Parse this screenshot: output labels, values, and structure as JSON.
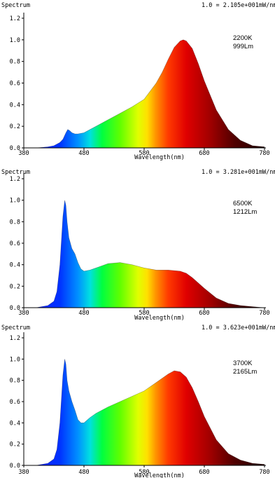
{
  "chart_data": [
    {
      "type": "area",
      "title": "Spectrum",
      "scale_note": "1.0 = 2.105e+001mW/nm",
      "annotation": [
        "2200K",
        "999Lm"
      ],
      "xlabel": "Wavelength(nm)",
      "xlim": [
        380,
        780
      ],
      "ylim": [
        0,
        1.2
      ],
      "xticks": [
        "380",
        "480",
        "580",
        "680",
        "780"
      ],
      "yticks": [
        "0.0",
        "0.2",
        "0.4",
        "0.6",
        "0.8",
        "1.0",
        "1.2"
      ],
      "grid": false,
      "x": [
        380,
        400,
        420,
        430,
        440,
        445,
        450,
        453,
        456,
        460,
        465,
        470,
        480,
        490,
        500,
        520,
        540,
        560,
        580,
        600,
        610,
        620,
        630,
        640,
        645,
        650,
        660,
        670,
        680,
        700,
        720,
        740,
        760,
        780
      ],
      "y": [
        0.0,
        0.0,
        0.01,
        0.02,
        0.05,
        0.08,
        0.14,
        0.17,
        0.16,
        0.14,
        0.13,
        0.13,
        0.14,
        0.17,
        0.2,
        0.26,
        0.32,
        0.38,
        0.45,
        0.6,
        0.7,
        0.82,
        0.93,
        0.99,
        1.0,
        0.99,
        0.92,
        0.78,
        0.62,
        0.35,
        0.17,
        0.07,
        0.02,
        0.01
      ]
    },
    {
      "type": "area",
      "title": "Spectrum",
      "scale_note": "1.0 = 3.281e+001mW/nm",
      "annotation": [
        "6500K",
        "1212Lm"
      ],
      "xlabel": "Wavelength(nm)",
      "xlim": [
        380,
        780
      ],
      "ylim": [
        0,
        1.2
      ],
      "xticks": [
        "380",
        "480",
        "580",
        "680",
        "780"
      ],
      "yticks": [
        "0.0",
        "0.2",
        "0.4",
        "0.6",
        "0.8",
        "1.0",
        "1.2"
      ],
      "grid": false,
      "x": [
        380,
        400,
        420,
        430,
        435,
        440,
        445,
        448,
        450,
        452,
        455,
        460,
        465,
        470,
        475,
        480,
        490,
        500,
        520,
        540,
        560,
        580,
        600,
        620,
        640,
        650,
        660,
        680,
        700,
        720,
        740,
        760,
        780
      ],
      "y": [
        0.0,
        0.0,
        0.02,
        0.06,
        0.15,
        0.4,
        0.85,
        1.0,
        0.95,
        0.8,
        0.65,
        0.55,
        0.5,
        0.42,
        0.36,
        0.34,
        0.35,
        0.37,
        0.41,
        0.42,
        0.4,
        0.37,
        0.35,
        0.35,
        0.34,
        0.32,
        0.28,
        0.18,
        0.09,
        0.04,
        0.02,
        0.01,
        0.0
      ]
    },
    {
      "type": "area",
      "title": "Spectrum",
      "scale_note": "1.0 = 3.623e+001mW/nm",
      "annotation": [
        "3700K",
        "2165Lm"
      ],
      "xlabel": "Wavelength(nm)",
      "xlim": [
        380,
        780
      ],
      "ylim": [
        0,
        1.2
      ],
      "xticks": [
        "380",
        "480",
        "580",
        "680",
        "780"
      ],
      "yticks": [
        "0.0",
        "0.2",
        "0.4",
        "0.6",
        "0.8",
        "1.0",
        "1.2"
      ],
      "grid": false,
      "x": [
        380,
        400,
        420,
        430,
        435,
        440,
        445,
        448,
        450,
        452,
        455,
        460,
        465,
        470,
        475,
        480,
        490,
        500,
        520,
        540,
        560,
        580,
        600,
        620,
        630,
        640,
        650,
        660,
        670,
        680,
        700,
        720,
        740,
        760,
        780
      ],
      "y": [
        0.0,
        0.0,
        0.02,
        0.06,
        0.15,
        0.4,
        0.85,
        1.0,
        0.95,
        0.8,
        0.7,
        0.6,
        0.52,
        0.43,
        0.4,
        0.4,
        0.45,
        0.49,
        0.55,
        0.6,
        0.65,
        0.7,
        0.78,
        0.86,
        0.89,
        0.88,
        0.83,
        0.73,
        0.6,
        0.46,
        0.24,
        0.11,
        0.05,
        0.02,
        0.01
      ]
    }
  ]
}
